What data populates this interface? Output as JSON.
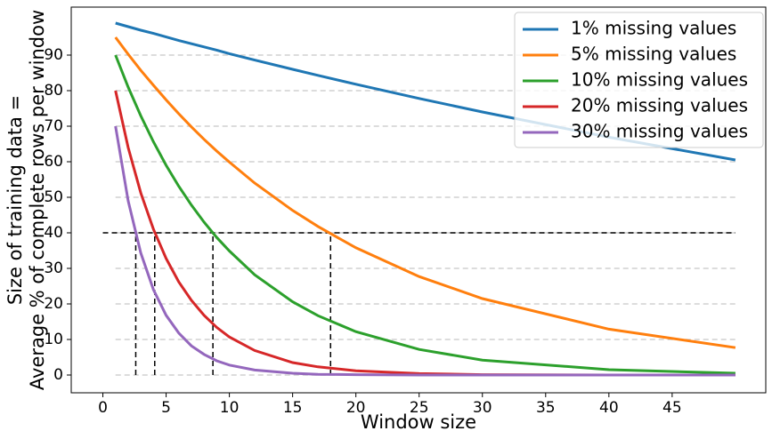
{
  "chart_data": {
    "type": "line",
    "xlabel": "Window size",
    "ylabel": [
      "Size of training data =",
      "Average % of complete rows per window"
    ],
    "x": [
      1,
      2,
      3,
      4,
      5,
      6,
      7,
      8,
      9,
      10,
      12,
      15,
      17,
      20,
      25,
      30,
      40,
      50
    ],
    "series": [
      {
        "name": "1% missing values",
        "color": "#1f77b4",
        "values": [
          99,
          98.0,
          97.0,
          96.1,
          95.1,
          94.1,
          93.2,
          92.3,
          91.4,
          90.4,
          88.6,
          86.0,
          84.3,
          81.8,
          77.8,
          74.0,
          66.9,
          60.5
        ]
      },
      {
        "name": "5% missing values",
        "color": "#ff7f0e",
        "values": [
          95,
          90.25,
          85.7,
          81.5,
          77.4,
          73.5,
          69.8,
          66.3,
          63.0,
          59.9,
          54.0,
          46.3,
          41.8,
          35.8,
          27.7,
          21.5,
          12.9,
          7.7
        ]
      },
      {
        "name": "10% missing values",
        "color": "#2ca02c",
        "values": [
          90,
          81,
          72.9,
          65.6,
          59.0,
          53.1,
          47.8,
          43.0,
          38.7,
          34.9,
          28.2,
          20.6,
          16.7,
          12.2,
          7.2,
          4.2,
          1.5,
          0.5
        ]
      },
      {
        "name": "20% missing values",
        "color": "#d62728",
        "values": [
          80,
          64,
          51.2,
          41.0,
          32.8,
          26.2,
          21.0,
          16.8,
          13.4,
          10.7,
          6.9,
          3.5,
          2.3,
          1.2,
          0.4,
          0.1,
          0.0,
          0.0
        ]
      },
      {
        "name": "30% missing values",
        "color": "#9467bd",
        "values": [
          70,
          49,
          34.3,
          24.0,
          16.8,
          11.8,
          8.2,
          5.8,
          4.0,
          2.8,
          1.4,
          0.5,
          0.2,
          0.1,
          0.0,
          0.0,
          0.0,
          0.0
        ]
      }
    ],
    "threshold": {
      "y": 40,
      "x_range": [
        0,
        50
      ],
      "crossings": [
        2.6,
        4.1,
        8.7,
        18
      ]
    },
    "xlim": [
      -2.5,
      52.4
    ],
    "ylim": [
      -5,
      103.5
    ],
    "xticks": [
      0,
      5,
      10,
      15,
      20,
      25,
      30,
      35,
      40,
      45
    ],
    "yticks": [
      0,
      10,
      20,
      30,
      40,
      50,
      60,
      70,
      80,
      90
    ],
    "grid": true,
    "legend": "upper right"
  }
}
